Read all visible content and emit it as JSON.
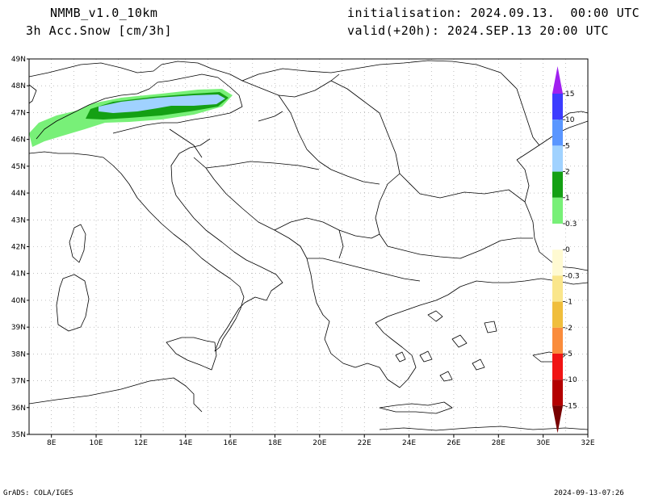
{
  "header": {
    "model": "NMMB_v1.0_10km",
    "field": "3h Acc.Snow [cm/3h]",
    "init": "initialisation: 2024.09.13.  00:00 UTC",
    "valid": "valid(+20h): 2024.SEP.13 20:00 UTC"
  },
  "axes": {
    "lat_labels": [
      "49N",
      "48N",
      "47N",
      "46N",
      "45N",
      "44N",
      "43N",
      "42N",
      "41N",
      "40N",
      "39N",
      "38N",
      "37N",
      "36N",
      "35N"
    ],
    "lon_labels": [
      "8E",
      "10E",
      "12E",
      "14E",
      "16E",
      "18E",
      "20E",
      "22E",
      "24E",
      "26E",
      "28E",
      "30E",
      "32E"
    ],
    "lon_range": [
      7,
      32
    ],
    "lat_range": [
      35,
      49
    ]
  },
  "legend": {
    "labels": [
      "15",
      "10",
      "5",
      "2",
      "1",
      "0.3",
      "0",
      "-0.3",
      "-1",
      "-2",
      "-5",
      "-10",
      "-15"
    ],
    "colors": [
      "#a020f0",
      "#3c3cff",
      "#5a96ff",
      "#a0d2ff",
      "#14a014",
      "#78f078",
      "#ffffff",
      "#fffad2",
      "#fae68c",
      "#f0be3c",
      "#fa8c3c",
      "#f01414",
      "#b40000",
      "#780000"
    ]
  },
  "footer": {
    "left": "GrADS: COLA/IGES",
    "right": "2024-09-13-07:26"
  }
}
